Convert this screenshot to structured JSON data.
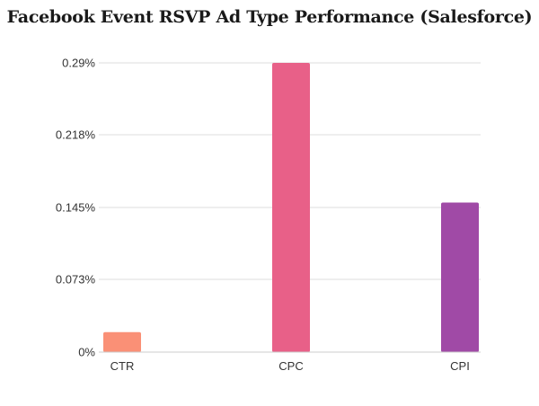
{
  "chart_data": {
    "type": "bar",
    "title": "Facebook Event RSVP Ad Type Performance (Salesforce)",
    "xlabel": "",
    "ylabel": "",
    "categories": [
      "CTR",
      "CPC",
      "CPI"
    ],
    "values": [
      0.02,
      0.29,
      0.15
    ],
    "colors": [
      "#fa9076",
      "#e86088",
      "#a04aa6"
    ],
    "value_unit": "%",
    "ylim": [
      0,
      0.29
    ],
    "yticks": [
      0,
      0.073,
      0.145,
      0.218,
      0.29
    ],
    "ytick_labels": [
      "0%",
      "0.073%",
      "0.145%",
      "0.218%",
      "0.29%"
    ],
    "grid": true,
    "legend": "none"
  }
}
